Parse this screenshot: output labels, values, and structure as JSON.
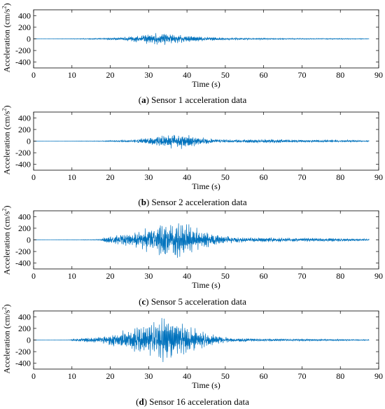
{
  "chart_data": [
    {
      "type": "line",
      "caption_letter": "a",
      "caption_text": "Sensor 1 acceleration data",
      "xlabel": "Time (s)",
      "ylabel_main": "Acceleration (cm/s",
      "ylabel_sup": "2",
      "ylabel_close": ")",
      "xlim": [
        0,
        90
      ],
      "ylim": [
        -500,
        500
      ],
      "x_ticks": [
        "0",
        "10",
        "20",
        "30",
        "40",
        "50",
        "60",
        "70",
        "80",
        "90"
      ],
      "y_ticks": [
        "400",
        "200",
        "0",
        "-200",
        "-400"
      ],
      "series_color": "#0072BD",
      "x_end": 87.5,
      "envelope": [
        [
          0,
          0
        ],
        [
          10,
          4
        ],
        [
          15,
          8
        ],
        [
          20,
          14
        ],
        [
          25,
          35
        ],
        [
          28,
          60
        ],
        [
          31,
          85
        ],
        [
          34,
          95
        ],
        [
          37,
          80
        ],
        [
          40,
          55
        ],
        [
          45,
          30
        ],
        [
          50,
          18
        ],
        [
          55,
          14
        ],
        [
          60,
          12
        ],
        [
          65,
          10
        ],
        [
          70,
          8
        ],
        [
          80,
          7
        ],
        [
          87.5,
          5
        ]
      ]
    },
    {
      "type": "line",
      "caption_letter": "b",
      "caption_text": "Sensor 2 acceleration data",
      "xlabel": "Time (s)",
      "ylabel_main": "Acceleration (cm/s",
      "ylabel_sup": "2",
      "ylabel_close": ")",
      "xlim": [
        0,
        90
      ],
      "ylim": [
        -500,
        500
      ],
      "x_ticks": [
        "0",
        "10",
        "20",
        "30",
        "40",
        "50",
        "60",
        "70",
        "80",
        "90"
      ],
      "y_ticks": [
        "400",
        "200",
        "0",
        "-200",
        "-400"
      ],
      "series_color": "#0072BD",
      "x_end": 87.5,
      "envelope": [
        [
          0,
          0
        ],
        [
          12,
          3
        ],
        [
          18,
          6
        ],
        [
          22,
          15
        ],
        [
          27,
          30
        ],
        [
          30,
          60
        ],
        [
          33,
          90
        ],
        [
          37,
          130
        ],
        [
          40,
          110
        ],
        [
          43,
          60
        ],
        [
          47,
          35
        ],
        [
          50,
          25
        ],
        [
          55,
          25
        ],
        [
          60,
          30
        ],
        [
          65,
          28
        ],
        [
          70,
          22
        ],
        [
          80,
          18
        ],
        [
          87.5,
          10
        ]
      ]
    },
    {
      "type": "line",
      "caption_letter": "c",
      "caption_text": "Sensor 5 acceleration data",
      "xlabel": "Time (s)",
      "ylabel_main": "Acceleration (cm/s",
      "ylabel_sup": "2",
      "ylabel_close": ")",
      "xlim": [
        0,
        90
      ],
      "ylim": [
        -500,
        500
      ],
      "x_ticks": [
        "0",
        "10",
        "20",
        "30",
        "40",
        "50",
        "60",
        "70",
        "80",
        "90"
      ],
      "y_ticks": [
        "400",
        "200",
        "0",
        "-200",
        "-400"
      ],
      "series_color": "#0072BD",
      "x_end": 87.5,
      "envelope": [
        [
          0,
          0
        ],
        [
          12,
          3
        ],
        [
          17,
          8
        ],
        [
          19,
          50
        ],
        [
          23,
          80
        ],
        [
          27,
          120
        ],
        [
          30,
          200
        ],
        [
          33,
          250
        ],
        [
          36,
          260
        ],
        [
          38,
          300
        ],
        [
          40,
          260
        ],
        [
          43,
          170
        ],
        [
          46,
          100
        ],
        [
          50,
          60
        ],
        [
          55,
          40
        ],
        [
          60,
          35
        ],
        [
          70,
          30
        ],
        [
          80,
          25
        ],
        [
          87.5,
          15
        ]
      ]
    },
    {
      "type": "line",
      "caption_letter": "d",
      "caption_text": "Sensor 16 acceleration data",
      "xlabel": "Time (s)",
      "ylabel_main": "Acceleration (cm/s",
      "ylabel_sup": "2",
      "ylabel_close": ")",
      "xlim": [
        0,
        90
      ],
      "ylim": [
        -500,
        500
      ],
      "x_ticks": [
        "0",
        "10",
        "20",
        "30",
        "40",
        "50",
        "60",
        "70",
        "80",
        "90"
      ],
      "y_ticks": [
        "400",
        "200",
        "0",
        "-200",
        "-400"
      ],
      "series_color": "#0072BD",
      "x_end": 87.5,
      "envelope": [
        [
          0,
          0
        ],
        [
          9,
          3
        ],
        [
          11,
          20
        ],
        [
          14,
          40
        ],
        [
          18,
          60
        ],
        [
          21,
          110
        ],
        [
          24,
          170
        ],
        [
          28,
          220
        ],
        [
          31,
          260
        ],
        [
          34,
          330
        ],
        [
          36,
          300
        ],
        [
          39,
          250
        ],
        [
          42,
          180
        ],
        [
          45,
          110
        ],
        [
          49,
          55
        ],
        [
          53,
          30
        ],
        [
          60,
          20
        ],
        [
          70,
          15
        ],
        [
          80,
          12
        ],
        [
          87.5,
          8
        ]
      ]
    }
  ]
}
